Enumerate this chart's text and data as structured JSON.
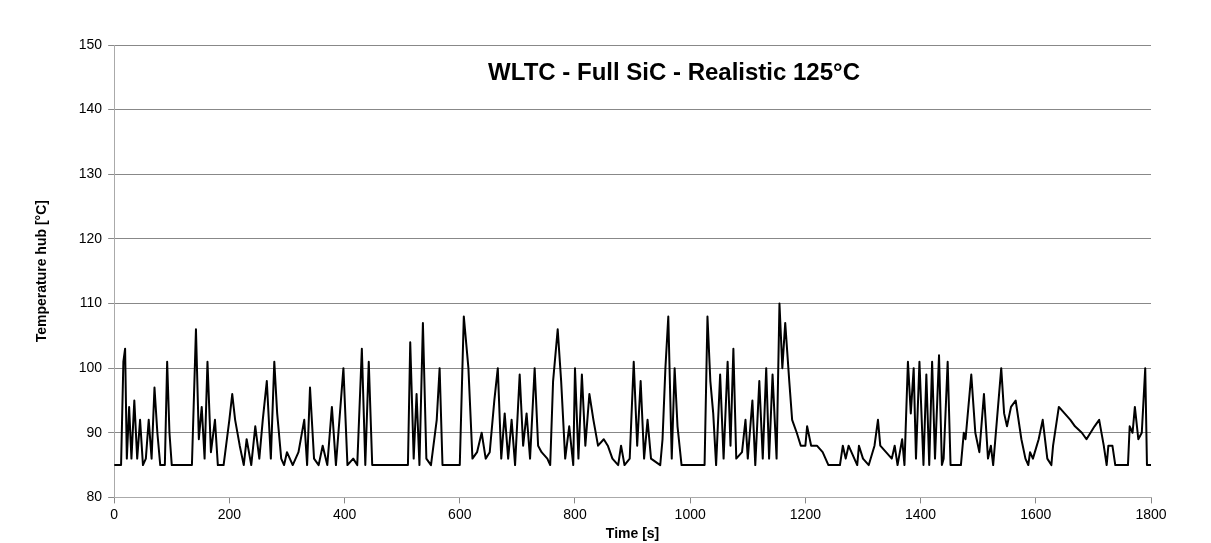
{
  "chart_data": {
    "type": "line",
    "title": "WLTC - Full SiC - Realistic 125°C",
    "xlabel": "Time [s]",
    "ylabel": "Temperature hub [°C]",
    "xlim": [
      0,
      1800
    ],
    "xticks": [
      0,
      200,
      400,
      600,
      800,
      1000,
      1200,
      1400,
      1600,
      1800
    ],
    "ylim": [
      80,
      150
    ],
    "yticks": [
      80,
      90,
      100,
      110,
      120,
      130,
      140,
      150
    ],
    "grid": "y",
    "legend": false,
    "marker": "none",
    "line_style": "solid",
    "x": [
      0,
      12,
      16,
      19,
      22,
      26,
      30,
      35,
      40,
      45,
      50,
      55,
      60,
      65,
      70,
      75,
      80,
      88,
      92,
      96,
      100,
      135,
      142,
      147,
      152,
      157,
      162,
      168,
      175,
      180,
      190,
      200,
      205,
      210,
      218,
      225,
      230,
      238,
      245,
      252,
      258,
      265,
      272,
      278,
      283,
      290,
      295,
      300,
      310,
      320,
      330,
      335,
      340,
      347,
      355,
      362,
      370,
      378,
      385,
      398,
      405,
      415,
      422,
      430,
      436,
      442,
      448,
      510,
      514,
      520,
      525,
      530,
      536,
      542,
      550,
      560,
      565,
      570,
      600,
      607,
      615,
      622,
      630,
      638,
      645,
      652,
      660,
      666,
      672,
      678,
      684,
      690,
      696,
      704,
      710,
      716,
      722,
      730,
      736,
      742,
      752,
      757,
      762,
      770,
      776,
      783,
      790,
      797,
      800,
      806,
      812,
      818,
      825,
      832,
      840,
      850,
      857,
      865,
      875,
      880,
      886,
      895,
      902,
      908,
      914,
      920,
      926,
      932,
      948,
      952,
      957,
      962,
      968,
      973,
      978,
      985,
      1025,
      1030,
      1035,
      1040,
      1045,
      1052,
      1058,
      1065,
      1070,
      1075,
      1080,
      1090,
      1096,
      1100,
      1108,
      1113,
      1120,
      1126,
      1132,
      1137,
      1143,
      1150,
      1155,
      1160,
      1165,
      1172,
      1177,
      1185,
      1192,
      1200,
      1203,
      1210,
      1220,
      1230,
      1240,
      1260,
      1265,
      1270,
      1275,
      1280,
      1290,
      1293,
      1300,
      1310,
      1320,
      1326,
      1330,
      1340,
      1350,
      1355,
      1360,
      1368,
      1372,
      1378,
      1383,
      1388,
      1392,
      1398,
      1405,
      1410,
      1415,
      1420,
      1425,
      1432,
      1437,
      1440,
      1447,
      1452,
      1470,
      1475,
      1478,
      1488,
      1495,
      1502,
      1510,
      1517,
      1522,
      1526,
      1540,
      1545,
      1550,
      1557,
      1565,
      1575,
      1582,
      1587,
      1590,
      1595,
      1605,
      1612,
      1620,
      1627,
      1630,
      1640,
      1650,
      1660,
      1668,
      1680,
      1688,
      1695,
      1702,
      1710,
      1718,
      1723,
      1726,
      1733,
      1738,
      1760,
      1763,
      1768,
      1772,
      1778,
      1784,
      1790,
      1793,
      1800
    ],
    "series": [
      {
        "color": "#000000",
        "values": [
          85,
          85,
          101,
          103,
          86,
          94,
          86,
          95,
          86,
          92,
          85,
          86,
          92,
          86,
          97,
          90,
          85,
          85,
          101,
          90,
          85,
          85,
          106,
          89,
          94,
          86,
          101,
          87,
          92,
          85,
          85,
          92,
          96,
          92,
          88,
          85,
          89,
          85,
          91,
          86,
          92,
          98,
          86,
          101,
          93,
          86,
          85,
          87,
          85,
          87,
          92,
          85,
          97,
          86,
          85,
          88,
          85,
          94,
          85,
          100,
          85,
          86,
          85,
          103,
          85,
          101,
          85,
          85,
          104,
          86,
          96,
          85,
          107,
          86,
          85,
          92,
          100,
          85,
          85,
          108,
          100,
          86,
          87,
          90,
          86,
          87,
          95,
          100,
          86,
          93,
          86,
          92,
          85,
          99,
          88,
          93,
          86,
          100,
          88,
          87,
          86,
          85,
          98,
          106,
          98,
          86,
          91,
          85,
          100,
          86,
          99,
          88,
          96,
          92,
          88,
          89,
          88,
          86,
          85,
          88,
          85,
          86,
          101,
          88,
          98,
          86,
          92,
          86,
          85,
          89,
          100,
          108,
          86,
          100,
          91,
          85,
          85,
          108,
          98,
          93,
          85,
          99,
          86,
          101,
          88,
          103,
          86,
          87,
          92,
          86,
          95,
          85,
          98,
          86,
          100,
          86,
          99,
          86,
          110,
          100,
          107,
          98,
          92,
          90,
          88,
          88,
          91,
          88,
          88,
          87,
          85,
          85,
          88,
          86,
          88,
          87,
          85,
          88,
          86,
          85,
          88,
          92,
          88,
          87,
          86,
          88,
          85,
          89,
          85,
          101,
          93,
          100,
          86,
          101,
          85,
          99,
          85,
          101,
          86,
          102,
          85,
          86,
          101,
          85,
          85,
          90,
          89,
          99,
          90,
          87,
          96,
          86,
          88,
          85,
          100,
          93,
          91,
          94,
          95,
          89,
          86,
          85,
          87,
          86,
          89,
          92,
          86,
          85,
          88,
          94,
          93,
          92,
          91,
          90,
          89,
          90,
          91,
          92,
          88,
          85,
          88,
          88,
          85,
          85,
          91,
          90,
          94,
          89,
          90,
          100,
          85,
          85
        ]
      }
    ]
  }
}
